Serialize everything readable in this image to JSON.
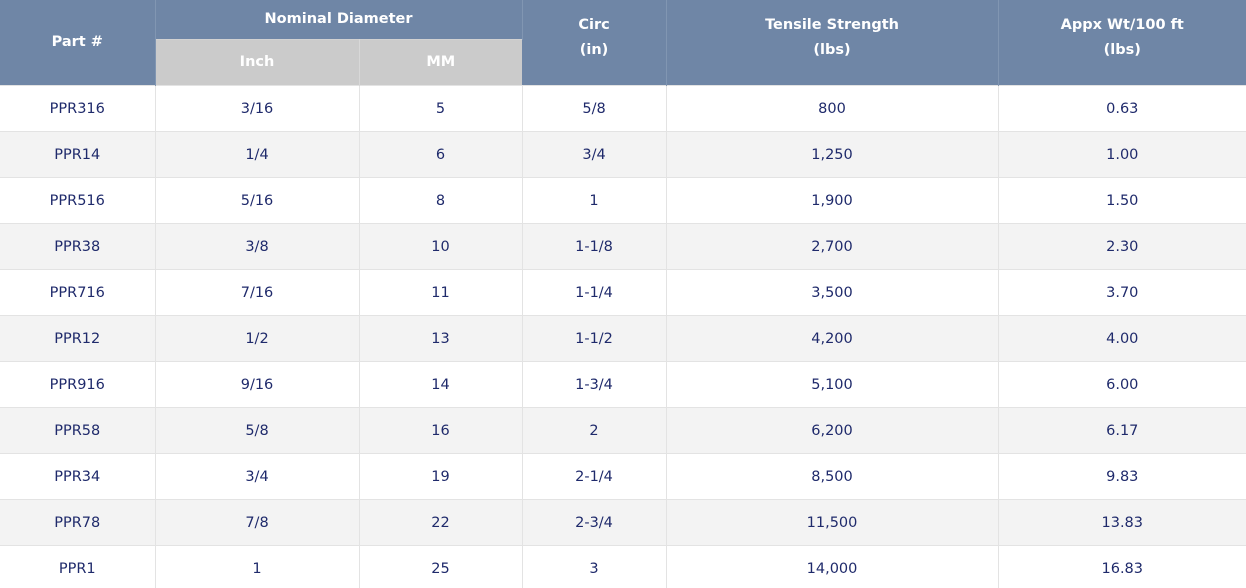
{
  "headers": {
    "part": "Part #",
    "nominal": "Nominal Diameter",
    "inch": "Inch",
    "mm": "MM",
    "circ_line1": "Circ",
    "circ_line2": "(in)",
    "tensile_line1": "Tensile Strength",
    "tensile_line2": "(lbs)",
    "weight_line1": "Appx Wt/100 ft",
    "weight_line2": "(lbs)"
  },
  "colors": {
    "header_bg": "#6f86a6",
    "subheader_bg": "#cbcbcb",
    "row_alt_bg": "#f3f3f3",
    "text": "#1f2a6b"
  },
  "rows": [
    {
      "part": "PPR316",
      "inch": "3/16",
      "mm": "5",
      "circ": "5/8",
      "tensile": "800",
      "weight": "0.63"
    },
    {
      "part": "PPR14",
      "inch": "1/4",
      "mm": "6",
      "circ": "3/4",
      "tensile": "1,250",
      "weight": "1.00"
    },
    {
      "part": "PPR516",
      "inch": "5/16",
      "mm": "8",
      "circ": "1",
      "tensile": "1,900",
      "weight": "1.50"
    },
    {
      "part": "PPR38",
      "inch": "3/8",
      "mm": "10",
      "circ": "1-1/8",
      "tensile": "2,700",
      "weight": "2.30"
    },
    {
      "part": "PPR716",
      "inch": "7/16",
      "mm": "11",
      "circ": "1-1/4",
      "tensile": "3,500",
      "weight": "3.70"
    },
    {
      "part": "PPR12",
      "inch": "1/2",
      "mm": "13",
      "circ": "1-1/2",
      "tensile": "4,200",
      "weight": "4.00"
    },
    {
      "part": "PPR916",
      "inch": "9/16",
      "mm": "14",
      "circ": "1-3/4",
      "tensile": "5,100",
      "weight": "6.00"
    },
    {
      "part": "PPR58",
      "inch": "5/8",
      "mm": "16",
      "circ": "2",
      "tensile": "6,200",
      "weight": "6.17"
    },
    {
      "part": "PPR34",
      "inch": "3/4",
      "mm": "19",
      "circ": "2-1/4",
      "tensile": "8,500",
      "weight": "9.83"
    },
    {
      "part": "PPR78",
      "inch": "7/8",
      "mm": "22",
      "circ": "2-3/4",
      "tensile": "11,500",
      "weight": "13.83"
    },
    {
      "part": "PPR1",
      "inch": "1",
      "mm": "25",
      "circ": "3",
      "tensile": "14,000",
      "weight": "16.83"
    }
  ]
}
